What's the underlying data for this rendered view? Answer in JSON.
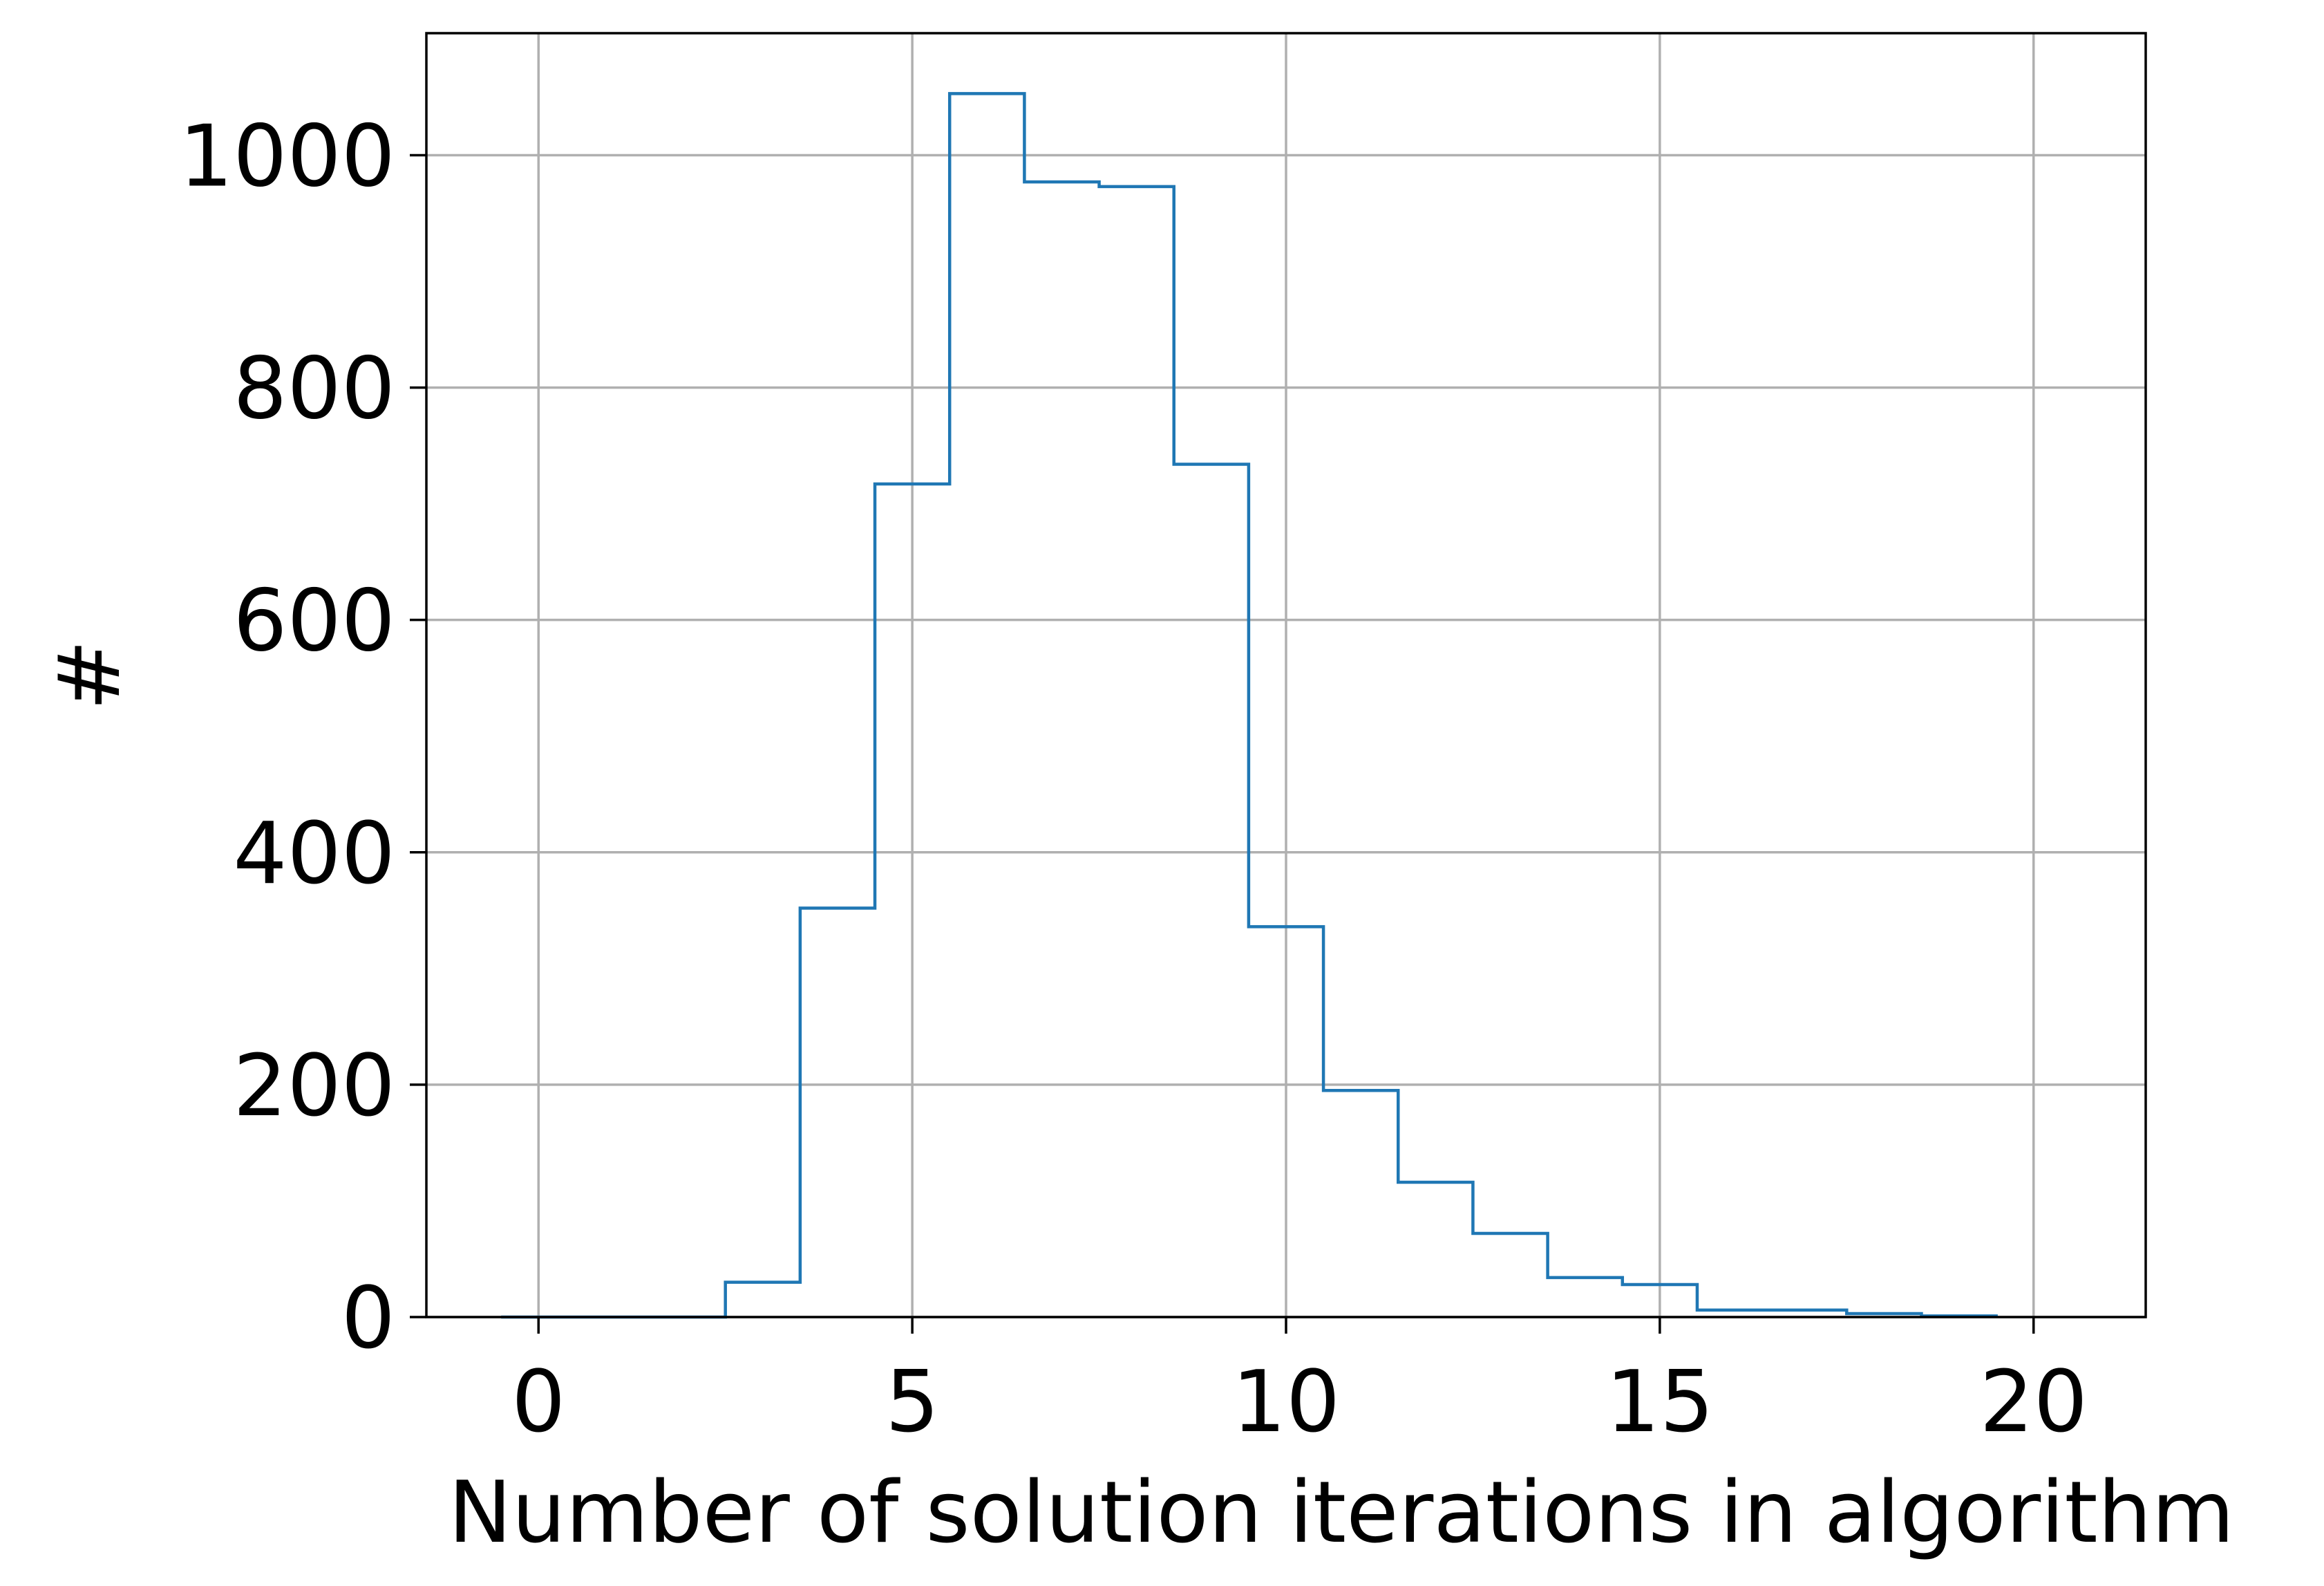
{
  "chart_data": {
    "type": "histogram-step",
    "title": "",
    "xlabel": "Number of solution iterations in algorithm",
    "ylabel": "#",
    "xlim": [
      -1.5,
      21.5
    ],
    "ylim": [
      0,
      1105
    ],
    "grid": true,
    "x_ticks": [
      0,
      5,
      10,
      15,
      20
    ],
    "x_tick_labels": [
      "0",
      "5",
      "10",
      "15",
      "20"
    ],
    "y_ticks": [
      0,
      200,
      400,
      600,
      800,
      1000
    ],
    "y_tick_labels": [
      "0",
      "200",
      "400",
      "600",
      "800",
      "1000"
    ],
    "bin_edges": [
      -0.5,
      0.5,
      1.5,
      2.5,
      3.5,
      4.5,
      5.5,
      6.5,
      7.5,
      8.5,
      9.5,
      10.5,
      11.5,
      12.5,
      13.5,
      14.5,
      15.5,
      16.5,
      17.5,
      18.5,
      19.5
    ],
    "counts": [
      0,
      0,
      0,
      30,
      352,
      717,
      1053,
      977,
      973,
      734,
      336,
      195,
      116,
      72,
      34,
      28,
      6,
      6,
      3,
      1
    ],
    "series": [
      {
        "color": "#1f77b4"
      }
    ]
  },
  "style": {
    "line_color": "#1f77b4",
    "grid_color": "#b0b0b0",
    "axis_color": "#000000"
  }
}
